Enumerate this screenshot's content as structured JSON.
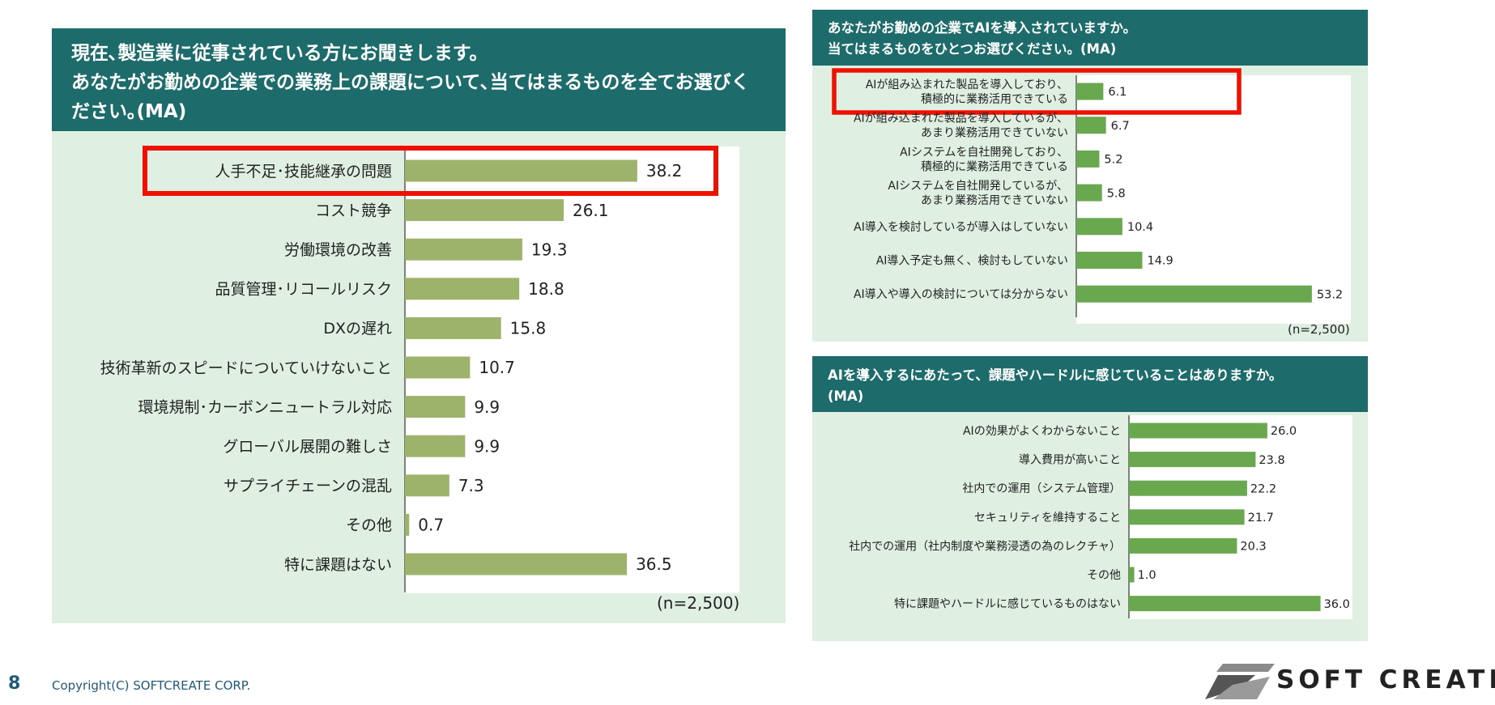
{
  "page": {
    "number": "8",
    "copyright": "Copyright(C) SOFTCREATE CORP.",
    "logo_text": "SOFT CREATE"
  },
  "colors": {
    "header_bg": "#1e6b6b",
    "panel_bg": "#dff0e2",
    "bar_left": "#9db26a",
    "bar_right": "#6aa84f",
    "highlight": "#ee1100"
  },
  "chart_data": [
    {
      "type": "bar",
      "orientation": "horizontal",
      "title": "現在､製造業に従事されている方にお聞きします。",
      "subtitle_lines": [
        "あなたがお勤めの企業での業務上の課題について､当てはまるものを全てお選びく",
        "ださい｡(MA)"
      ],
      "categories": [
        "人手不足･技能継承の問題",
        "コスト競争",
        "労働環境の改善",
        "品質管理･リコールリスク",
        "DXの遅れ",
        "技術革新のスピードについていけないこと",
        "環境規制･カーボンニュートラル対応",
        "グローバル展開の難しさ",
        "サプライチェーンの混乱",
        "その他",
        "特に課題はない"
      ],
      "values": [
        38.2,
        26.1,
        19.3,
        18.8,
        15.8,
        10.7,
        9.9,
        9.9,
        7.3,
        0.7,
        36.5
      ],
      "value_labels": [
        "38.2",
        "26.1",
        "19.3",
        "18.8",
        "15.8",
        "10.7",
        "9.9",
        "9.9",
        "7.3",
        "0.7",
        "36.5"
      ],
      "xlim": [
        0,
        55
      ],
      "grid": false,
      "highlight_index": 0,
      "note": "(n=2,500)"
    },
    {
      "type": "bar",
      "orientation": "horizontal",
      "title_lines": [
        "あなたがお勤めの企業でAIを導入されていますか。",
        "当てはまるものをひとつお選びください。(MA)"
      ],
      "categories": [
        [
          "AIが組み込まれた製品を導入しており、",
          "積極的に業務活用できている"
        ],
        [
          "AIが組み込まれた製品を導入しているが、",
          "あまり業務活用できていない"
        ],
        [
          "AIシステムを自社開発しており、",
          "積極的に業務活用できている"
        ],
        [
          "AIシステムを自社開発しているが、",
          "あまり業務活用できていない"
        ],
        [
          "AI導入を検討しているが導入はしていない"
        ],
        [
          "AI導入予定も無く、検討もしていない"
        ],
        [
          "AI導入や導入の検討については分からない"
        ]
      ],
      "values": [
        6.1,
        6.7,
        5.2,
        5.8,
        10.4,
        14.9,
        53.2
      ],
      "value_labels": [
        "6.1",
        "6.7",
        "5.2",
        "5.8",
        "10.4",
        "14.9",
        "53.2"
      ],
      "xlim": [
        0,
        62
      ],
      "grid": false,
      "highlight_index": 0,
      "note": "(n=2,500)"
    },
    {
      "type": "bar",
      "orientation": "horizontal",
      "title_lines": [
        "AIを導入するにあたって、課題やハードルに感じていることはありますか。",
        "(MA)"
      ],
      "categories": [
        "AIの効果がよくわからないこと",
        "導入費用が高いこと",
        "社内での運用（システム管理）",
        "セキュリティを維持すること",
        "社内での運用（社内制度や業務浸透の為のレクチャ）",
        "その他",
        "特に課題やハードルに感じているものはない"
      ],
      "values": [
        26.0,
        23.8,
        22.2,
        21.7,
        20.3,
        1.0,
        36.0
      ],
      "value_labels": [
        "26.0",
        "23.8",
        "22.2",
        "21.7",
        "20.3",
        "1.0",
        "36.0"
      ],
      "xlim": [
        0,
        42
      ],
      "grid": false
    }
  ]
}
